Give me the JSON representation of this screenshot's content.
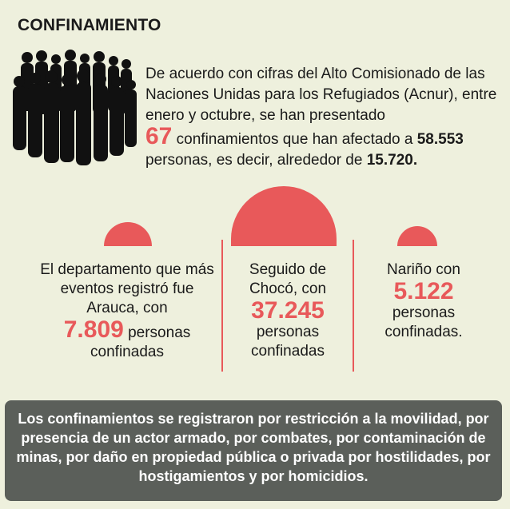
{
  "title": "CONFINAMIENTO",
  "intro": {
    "lead": "De acuerdo con cifras del Alto Comisionado de las Naciones Unidas para los Refugiados (Acnur), entre enero y octubre, se han presentado",
    "count": "67",
    "mid": "confinamientos que han afectado a",
    "affected": "58.553",
    "tail": "personas, es decir, alrededor de",
    "approx": "15.720."
  },
  "columns": [
    {
      "before": "El departamento que más eventos registró fue Arauca, con",
      "number": "7.809",
      "after_inline": "personas",
      "after": "confinadas"
    },
    {
      "before": "Seguido de Chocó, con",
      "number": "37.245",
      "after": "personas confinadas"
    },
    {
      "before": "Nariño con",
      "number": "5.122",
      "after": "personas confinadas."
    }
  ],
  "footer": "Los confinamientos se registraron por restricción a la movilidad, por presencia de un actor armado, por combates, por contaminación de minas, por daño en propiedad pública o privada por hostilidades, por hostigamientos y por homicidios.",
  "colors": {
    "accent": "#e8595a",
    "background": "#eef0dd",
    "footer_bg": "#5b5f5a"
  },
  "icons": {
    "crowd": "crowd-silhouette-icon"
  }
}
